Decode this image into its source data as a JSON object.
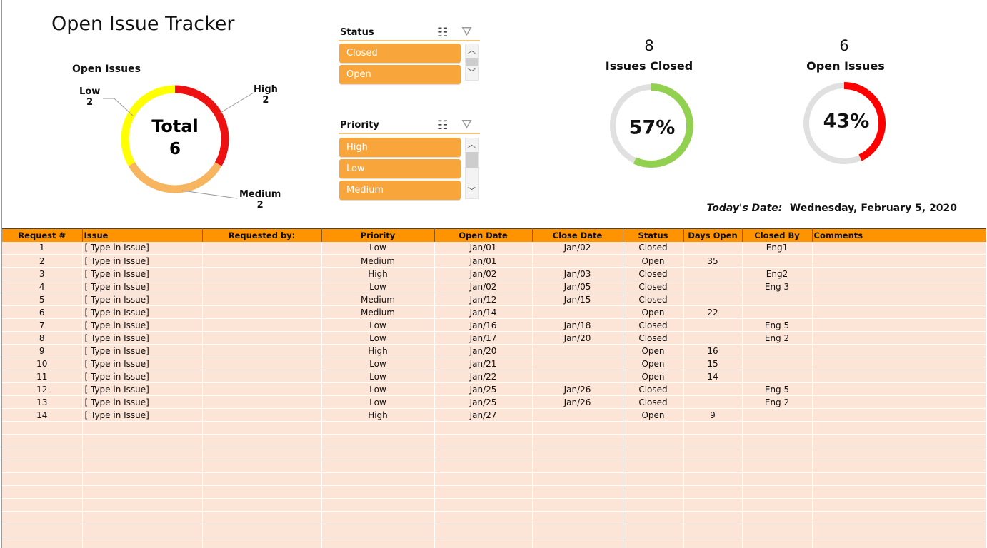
{
  "title": "Open Issue Tracker",
  "donut": {
    "title": "Open Issues",
    "center_label": "Total",
    "center_value": "6",
    "segments": [
      {
        "name": "High",
        "value": 2,
        "color": "#ee1111"
      },
      {
        "name": "Medium",
        "value": 2,
        "color": "#f6b55e"
      },
      {
        "name": "Low",
        "value": 2,
        "color": "#ffff00"
      }
    ],
    "labels": [
      {
        "name": "High",
        "value": "2"
      },
      {
        "name": "Low",
        "value": "2"
      },
      {
        "name": "Medium",
        "value": "2"
      }
    ]
  },
  "slicers": [
    {
      "title": "Status",
      "items": [
        "Closed",
        "Open"
      ],
      "icons": [
        "multi-select-icon",
        "clear-filter-icon"
      ]
    },
    {
      "title": "Priority",
      "items": [
        "High",
        "Low",
        "Medium"
      ],
      "icons": [
        "multi-select-icon",
        "clear-filter-icon"
      ]
    }
  ],
  "kpis": [
    {
      "value": "8",
      "label": "Issues Closed",
      "percent_text": "57%",
      "percent": 0.57,
      "color": "#92d050",
      "track": "#e0e0e0"
    },
    {
      "value": "6",
      "label": "Open Issues",
      "percent_text": "43%",
      "percent": 0.43,
      "color": "#ff0000",
      "track": "#e0e0e0"
    }
  ],
  "today": {
    "label": "Today's Date:",
    "value": "Wednesday, February 5, 2020"
  },
  "table": {
    "headers": [
      "Request #",
      "Issue",
      "Requested by:",
      "Priority",
      "Open Date",
      "Close Date",
      "Status",
      "Days Open",
      "Closed By",
      "Comments"
    ],
    "rows": [
      [
        "1",
        "[ Type in Issue]",
        "",
        "Low",
        "Jan/01",
        "Jan/02",
        "Closed",
        "",
        "Eng1",
        ""
      ],
      [
        "2",
        "[ Type in Issue]",
        "",
        "Medium",
        "Jan/01",
        "",
        "Open",
        "35",
        "",
        ""
      ],
      [
        "3",
        "[ Type in Issue]",
        "",
        "High",
        "Jan/02",
        "Jan/03",
        "Closed",
        "",
        "Eng2",
        ""
      ],
      [
        "4",
        "[ Type in Issue]",
        "",
        "Low",
        "Jan/02",
        "Jan/05",
        "Closed",
        "",
        "Eng 3",
        ""
      ],
      [
        "5",
        "[ Type in Issue]",
        "",
        "Medium",
        "Jan/12",
        "Jan/15",
        "Closed",
        "",
        "",
        ""
      ],
      [
        "6",
        "[ Type in Issue]",
        "",
        "Medium",
        "Jan/14",
        "",
        "Open",
        "22",
        "",
        ""
      ],
      [
        "7",
        "[ Type in Issue]",
        "",
        "Low",
        "Jan/16",
        "Jan/18",
        "Closed",
        "",
        "Eng 5",
        ""
      ],
      [
        "8",
        "[ Type in Issue]",
        "",
        "Low",
        "Jan/17",
        "Jan/20",
        "Closed",
        "",
        "Eng 2",
        ""
      ],
      [
        "9",
        "[ Type in Issue]",
        "",
        "High",
        "Jan/20",
        "",
        "Open",
        "16",
        "",
        ""
      ],
      [
        "10",
        "[ Type in Issue]",
        "",
        "Low",
        "Jan/21",
        "",
        "Open",
        "15",
        "",
        ""
      ],
      [
        "11",
        "[ Type in Issue]",
        "",
        "Low",
        "Jan/22",
        "",
        "Open",
        "14",
        "",
        ""
      ],
      [
        "12",
        "[ Type in Issue]",
        "",
        "Low",
        "Jan/25",
        "Jan/26",
        "Closed",
        "",
        "Eng 5",
        ""
      ],
      [
        "13",
        "[ Type in Issue]",
        "",
        "Low",
        "Jan/25",
        "Jan/26",
        "Closed",
        "",
        "Eng 2",
        ""
      ],
      [
        "14",
        "[ Type in Issue]",
        "",
        "High",
        "Jan/27",
        "",
        "Open",
        "9",
        "",
        ""
      ]
    ],
    "empty_rows": 10
  }
}
